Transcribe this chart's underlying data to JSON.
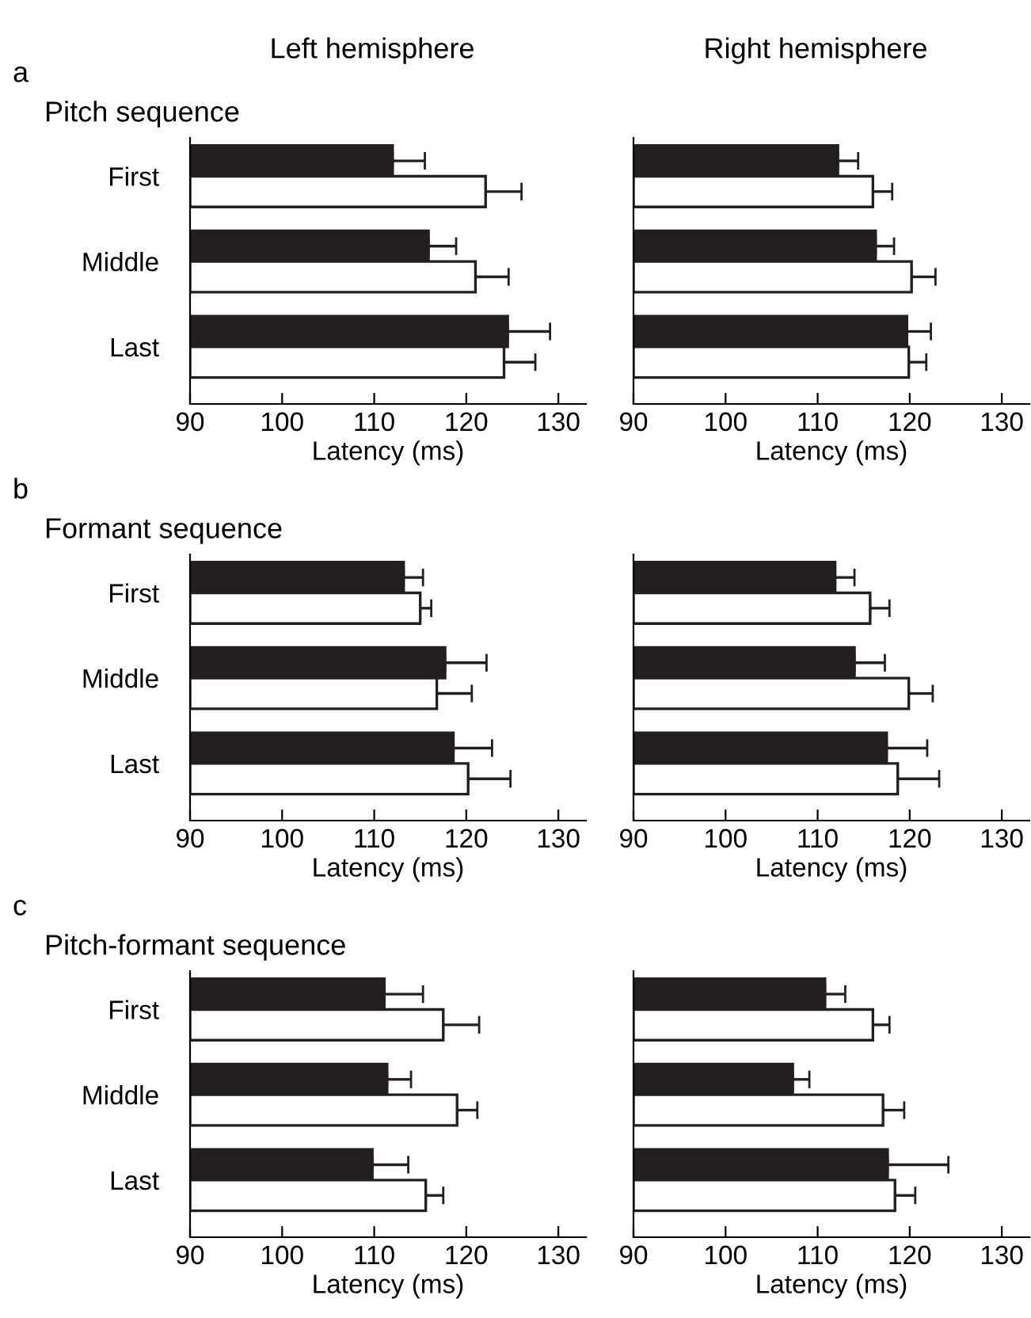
{
  "chart_data": [
    {
      "type": "bar",
      "orientation": "horizontal",
      "title": "Left hemisphere",
      "subtitle": "Pitch sequence",
      "annotations": [
        "a"
      ],
      "xlabel": "Latency (ms)",
      "categories": [
        "First",
        "Middle",
        "Last"
      ],
      "xlim": [
        90,
        133
      ],
      "xticks": [
        90,
        100,
        110,
        120,
        130
      ],
      "grid": false,
      "legend": false,
      "series": [
        {
          "color": "#231f20",
          "values": [
            112.0,
            115.9,
            124.5
          ],
          "errors": [
            [
              112.0,
              115.5
            ],
            [
              115.9,
              118.9
            ],
            [
              124.5,
              129.1
            ]
          ]
        },
        {
          "color": "#ffffff",
          "values": [
            122.1,
            121.0,
            124.1
          ],
          "errors": [
            [
              122.1,
              126.0
            ],
            [
              121.0,
              124.6
            ],
            [
              124.1,
              127.5
            ]
          ]
        }
      ]
    },
    {
      "type": "bar",
      "orientation": "horizontal",
      "title": "Right hemisphere",
      "xlabel": "Latency (ms)",
      "categories": [
        null,
        null,
        null
      ],
      "xlim": [
        90,
        133
      ],
      "xticks": [
        90,
        100,
        110,
        120,
        130
      ],
      "grid": false,
      "legend": false,
      "series": [
        {
          "color": "#231f20",
          "values": [
            112.2,
            116.3,
            119.7
          ],
          "errors": [
            [
              112.2,
              114.4
            ],
            [
              116.3,
              118.3
            ],
            [
              119.7,
              122.3
            ]
          ]
        },
        {
          "color": "#ffffff",
          "values": [
            116.0,
            120.2,
            119.9
          ],
          "errors": [
            [
              116.0,
              118.1
            ],
            [
              120.2,
              122.8
            ],
            [
              119.9,
              121.8
            ]
          ]
        }
      ]
    },
    {
      "type": "bar",
      "orientation": "horizontal",
      "subtitle": "Formant sequence",
      "annotations": [
        "b"
      ],
      "xlabel": "Latency (ms)",
      "categories": [
        "First",
        "Middle",
        "Last"
      ],
      "xlim": [
        90,
        133
      ],
      "xticks": [
        90,
        100,
        110,
        120,
        130
      ],
      "grid": false,
      "legend": false,
      "series": [
        {
          "color": "#231f20",
          "values": [
            113.2,
            117.7,
            118.6
          ],
          "errors": [
            [
              113.2,
              115.3
            ],
            [
              117.7,
              122.2
            ],
            [
              118.6,
              122.8
            ]
          ]
        },
        {
          "color": "#ffffff",
          "values": [
            115.0,
            116.8,
            120.2
          ],
          "errors": [
            [
              115.0,
              116.2
            ],
            [
              116.8,
              120.6
            ],
            [
              120.2,
              124.8
            ]
          ]
        }
      ]
    },
    {
      "type": "bar",
      "orientation": "horizontal",
      "xlabel": "Latency (ms)",
      "categories": [
        null,
        null,
        null
      ],
      "xlim": [
        90,
        133
      ],
      "xticks": [
        90,
        100,
        110,
        120,
        130
      ],
      "grid": false,
      "legend": false,
      "series": [
        {
          "color": "#231f20",
          "values": [
            111.9,
            114.0,
            117.5
          ],
          "errors": [
            [
              111.9,
              114.0
            ],
            [
              114.0,
              117.3
            ],
            [
              117.5,
              121.9
            ]
          ]
        },
        {
          "color": "#ffffff",
          "values": [
            115.7,
            119.9,
            118.7
          ],
          "errors": [
            [
              115.7,
              117.8
            ],
            [
              119.9,
              122.5
            ],
            [
              118.7,
              123.2
            ]
          ]
        }
      ]
    },
    {
      "type": "bar",
      "orientation": "horizontal",
      "subtitle": "Pitch-formant sequence",
      "annotations": [
        "c"
      ],
      "xlabel": "Latency (ms)",
      "categories": [
        "First",
        "Middle",
        "Last"
      ],
      "xlim": [
        90,
        133
      ],
      "xticks": [
        90,
        100,
        110,
        120,
        130
      ],
      "grid": false,
      "legend": false,
      "series": [
        {
          "color": "#231f20",
          "values": [
            111.1,
            111.4,
            109.8
          ],
          "errors": [
            [
              111.1,
              115.3
            ],
            [
              111.4,
              114.0
            ],
            [
              109.8,
              113.7
            ]
          ]
        },
        {
          "color": "#ffffff",
          "values": [
            117.5,
            119.0,
            115.6
          ],
          "errors": [
            [
              117.5,
              121.4
            ],
            [
              119.0,
              121.2
            ],
            [
              115.6,
              117.5
            ]
          ]
        }
      ]
    },
    {
      "type": "bar",
      "orientation": "horizontal",
      "xlabel": "Latency (ms)",
      "categories": [
        null,
        null,
        null
      ],
      "xlim": [
        90,
        133
      ],
      "xticks": [
        90,
        100,
        110,
        120,
        130
      ],
      "grid": false,
      "legend": false,
      "series": [
        {
          "color": "#231f20",
          "values": [
            110.8,
            107.3,
            117.6
          ],
          "errors": [
            [
              110.8,
              113.0
            ],
            [
              107.3,
              109.1
            ],
            [
              117.6,
              124.2
            ]
          ]
        },
        {
          "color": "#ffffff",
          "values": [
            116.0,
            117.1,
            118.4
          ],
          "errors": [
            [
              116.0,
              117.8
            ],
            [
              117.1,
              119.4
            ],
            [
              118.4,
              120.6
            ]
          ]
        }
      ]
    }
  ]
}
